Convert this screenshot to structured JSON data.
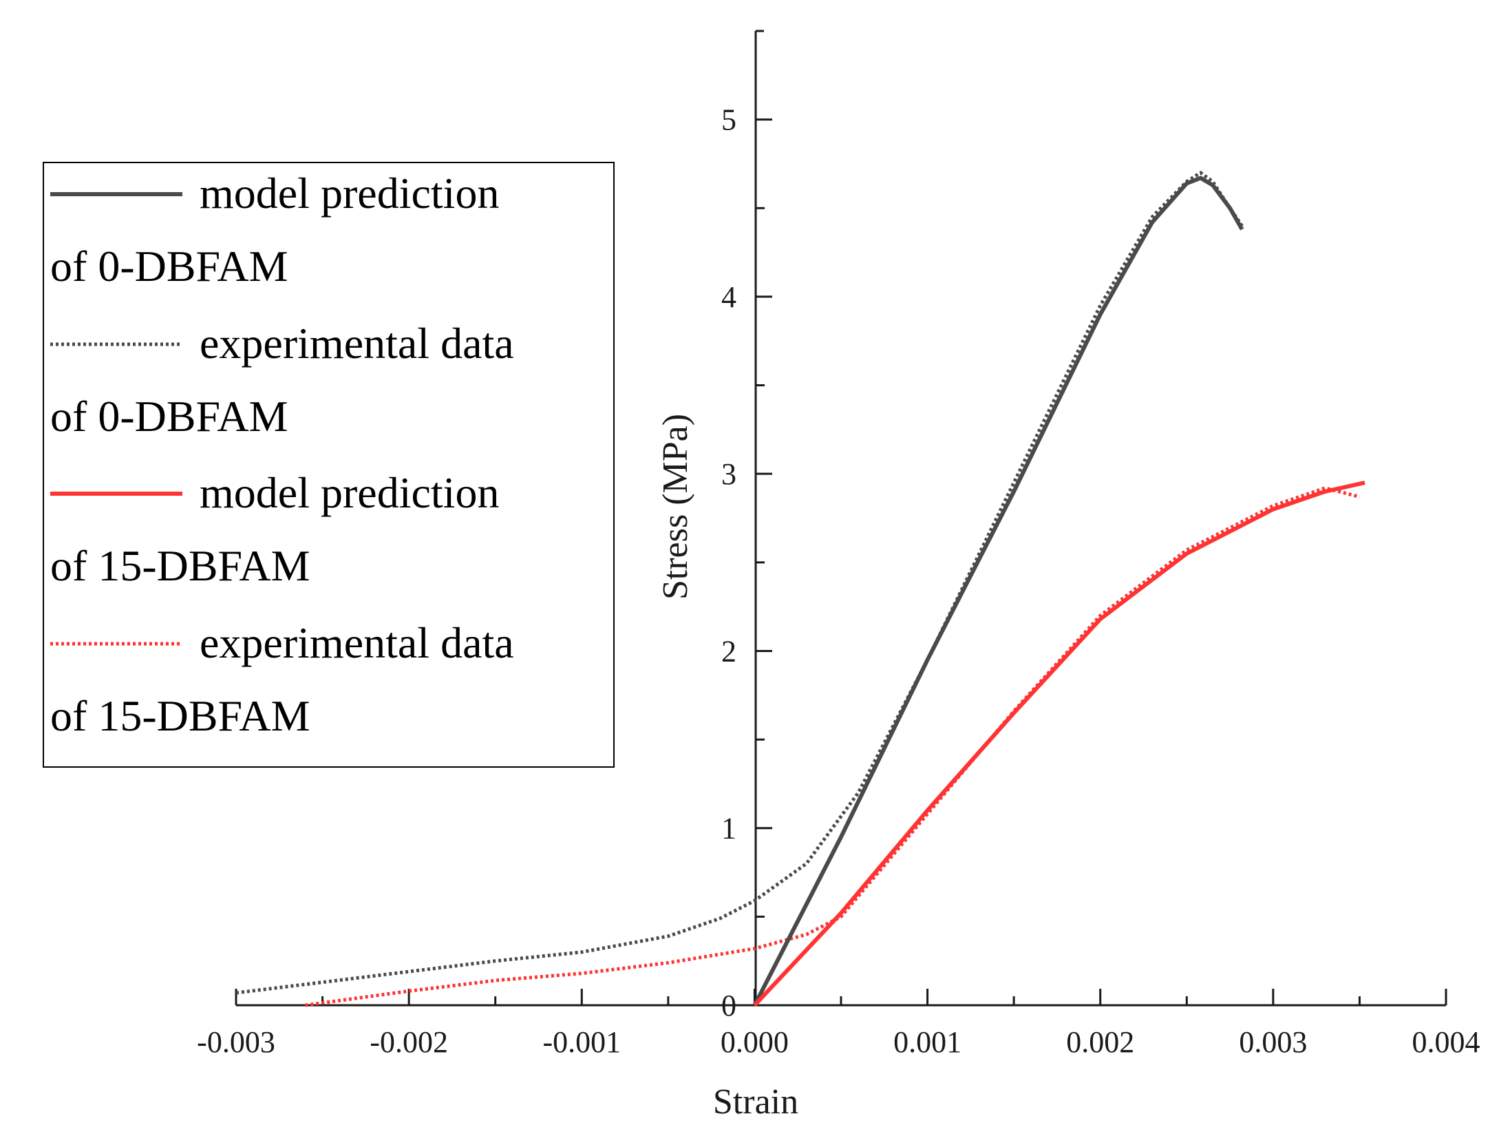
{
  "chart_data": {
    "type": "line",
    "title": "",
    "xlabel": "Strain",
    "ylabel": "Stress (MPa)",
    "xlim": [
      -0.003,
      0.004
    ],
    "ylim": [
      0,
      5.5
    ],
    "x_ticks": [
      -0.003,
      -0.002,
      -0.001,
      0.0,
      0.001,
      0.002,
      0.003,
      0.004
    ],
    "x_tick_labels": [
      "-0.003",
      "-0.002",
      "-0.001",
      "0.000",
      "0.001",
      "0.002",
      "0.003",
      "0.004"
    ],
    "y_ticks": [
      0,
      1,
      2,
      3,
      4,
      5
    ],
    "y_tick_labels": [
      "0",
      "1",
      "2",
      "3",
      "4",
      "5"
    ],
    "grid": false,
    "legend_position": "top-left",
    "legend": [
      {
        "line1": "model prediction",
        "line2": "of 0-DBFAM"
      },
      {
        "line1": "experimental data",
        "line2": "of 0-DBFAM"
      },
      {
        "line1": "model prediction",
        "line2": "of 15-DBFAM"
      },
      {
        "line1": "experimental data",
        "line2": "of 15-DBFAM"
      }
    ],
    "series": [
      {
        "name": "model prediction of 0-DBFAM",
        "color": "#4a4a4a",
        "style": "solid",
        "points": [
          [
            0.0,
            0.0
          ],
          [
            0.0005,
            0.95
          ],
          [
            0.001,
            1.95
          ],
          [
            0.0015,
            2.9
          ],
          [
            0.002,
            3.9
          ],
          [
            0.0023,
            4.42
          ],
          [
            0.0025,
            4.64
          ],
          [
            0.00258,
            4.67
          ],
          [
            0.00265,
            4.63
          ],
          [
            0.00275,
            4.5
          ],
          [
            0.00282,
            4.38
          ]
        ]
      },
      {
        "name": "experimental data of 0-DBFAM",
        "color": "#4a4a4a",
        "style": "dotted",
        "points": [
          [
            -0.003,
            0.07
          ],
          [
            -0.0025,
            0.13
          ],
          [
            -0.002,
            0.19
          ],
          [
            -0.0015,
            0.25
          ],
          [
            -0.001,
            0.3
          ],
          [
            -0.0005,
            0.39
          ],
          [
            -0.0002,
            0.49
          ],
          [
            0.0,
            0.59
          ],
          [
            0.0003,
            0.8
          ],
          [
            0.0006,
            1.2
          ],
          [
            0.001,
            1.95
          ],
          [
            0.0015,
            2.95
          ],
          [
            0.002,
            3.95
          ],
          [
            0.0023,
            4.45
          ],
          [
            0.0025,
            4.65
          ],
          [
            0.00258,
            4.7
          ],
          [
            0.00265,
            4.65
          ],
          [
            0.00275,
            4.5
          ],
          [
            0.00282,
            4.4
          ]
        ]
      },
      {
        "name": "model prediction of 15-DBFAM",
        "color": "#ff3333",
        "style": "solid",
        "points": [
          [
            0.0,
            0.0
          ],
          [
            0.0005,
            0.52
          ],
          [
            0.001,
            1.1
          ],
          [
            0.0015,
            1.65
          ],
          [
            0.002,
            2.18
          ],
          [
            0.0025,
            2.55
          ],
          [
            0.003,
            2.8
          ],
          [
            0.0033,
            2.9
          ],
          [
            0.00353,
            2.95
          ]
        ]
      },
      {
        "name": "experimental data of 15-DBFAM",
        "color": "#ff3333",
        "style": "dotted",
        "points": [
          [
            -0.0026,
            0.0
          ],
          [
            -0.002,
            0.08
          ],
          [
            -0.0015,
            0.14
          ],
          [
            -0.001,
            0.18
          ],
          [
            -0.0005,
            0.24
          ],
          [
            0.0,
            0.32
          ],
          [
            0.0003,
            0.4
          ],
          [
            0.0005,
            0.5
          ],
          [
            0.001,
            1.08
          ],
          [
            0.0015,
            1.66
          ],
          [
            0.002,
            2.2
          ],
          [
            0.0025,
            2.57
          ],
          [
            0.003,
            2.82
          ],
          [
            0.0033,
            2.92
          ],
          [
            0.0035,
            2.87
          ]
        ]
      }
    ]
  }
}
